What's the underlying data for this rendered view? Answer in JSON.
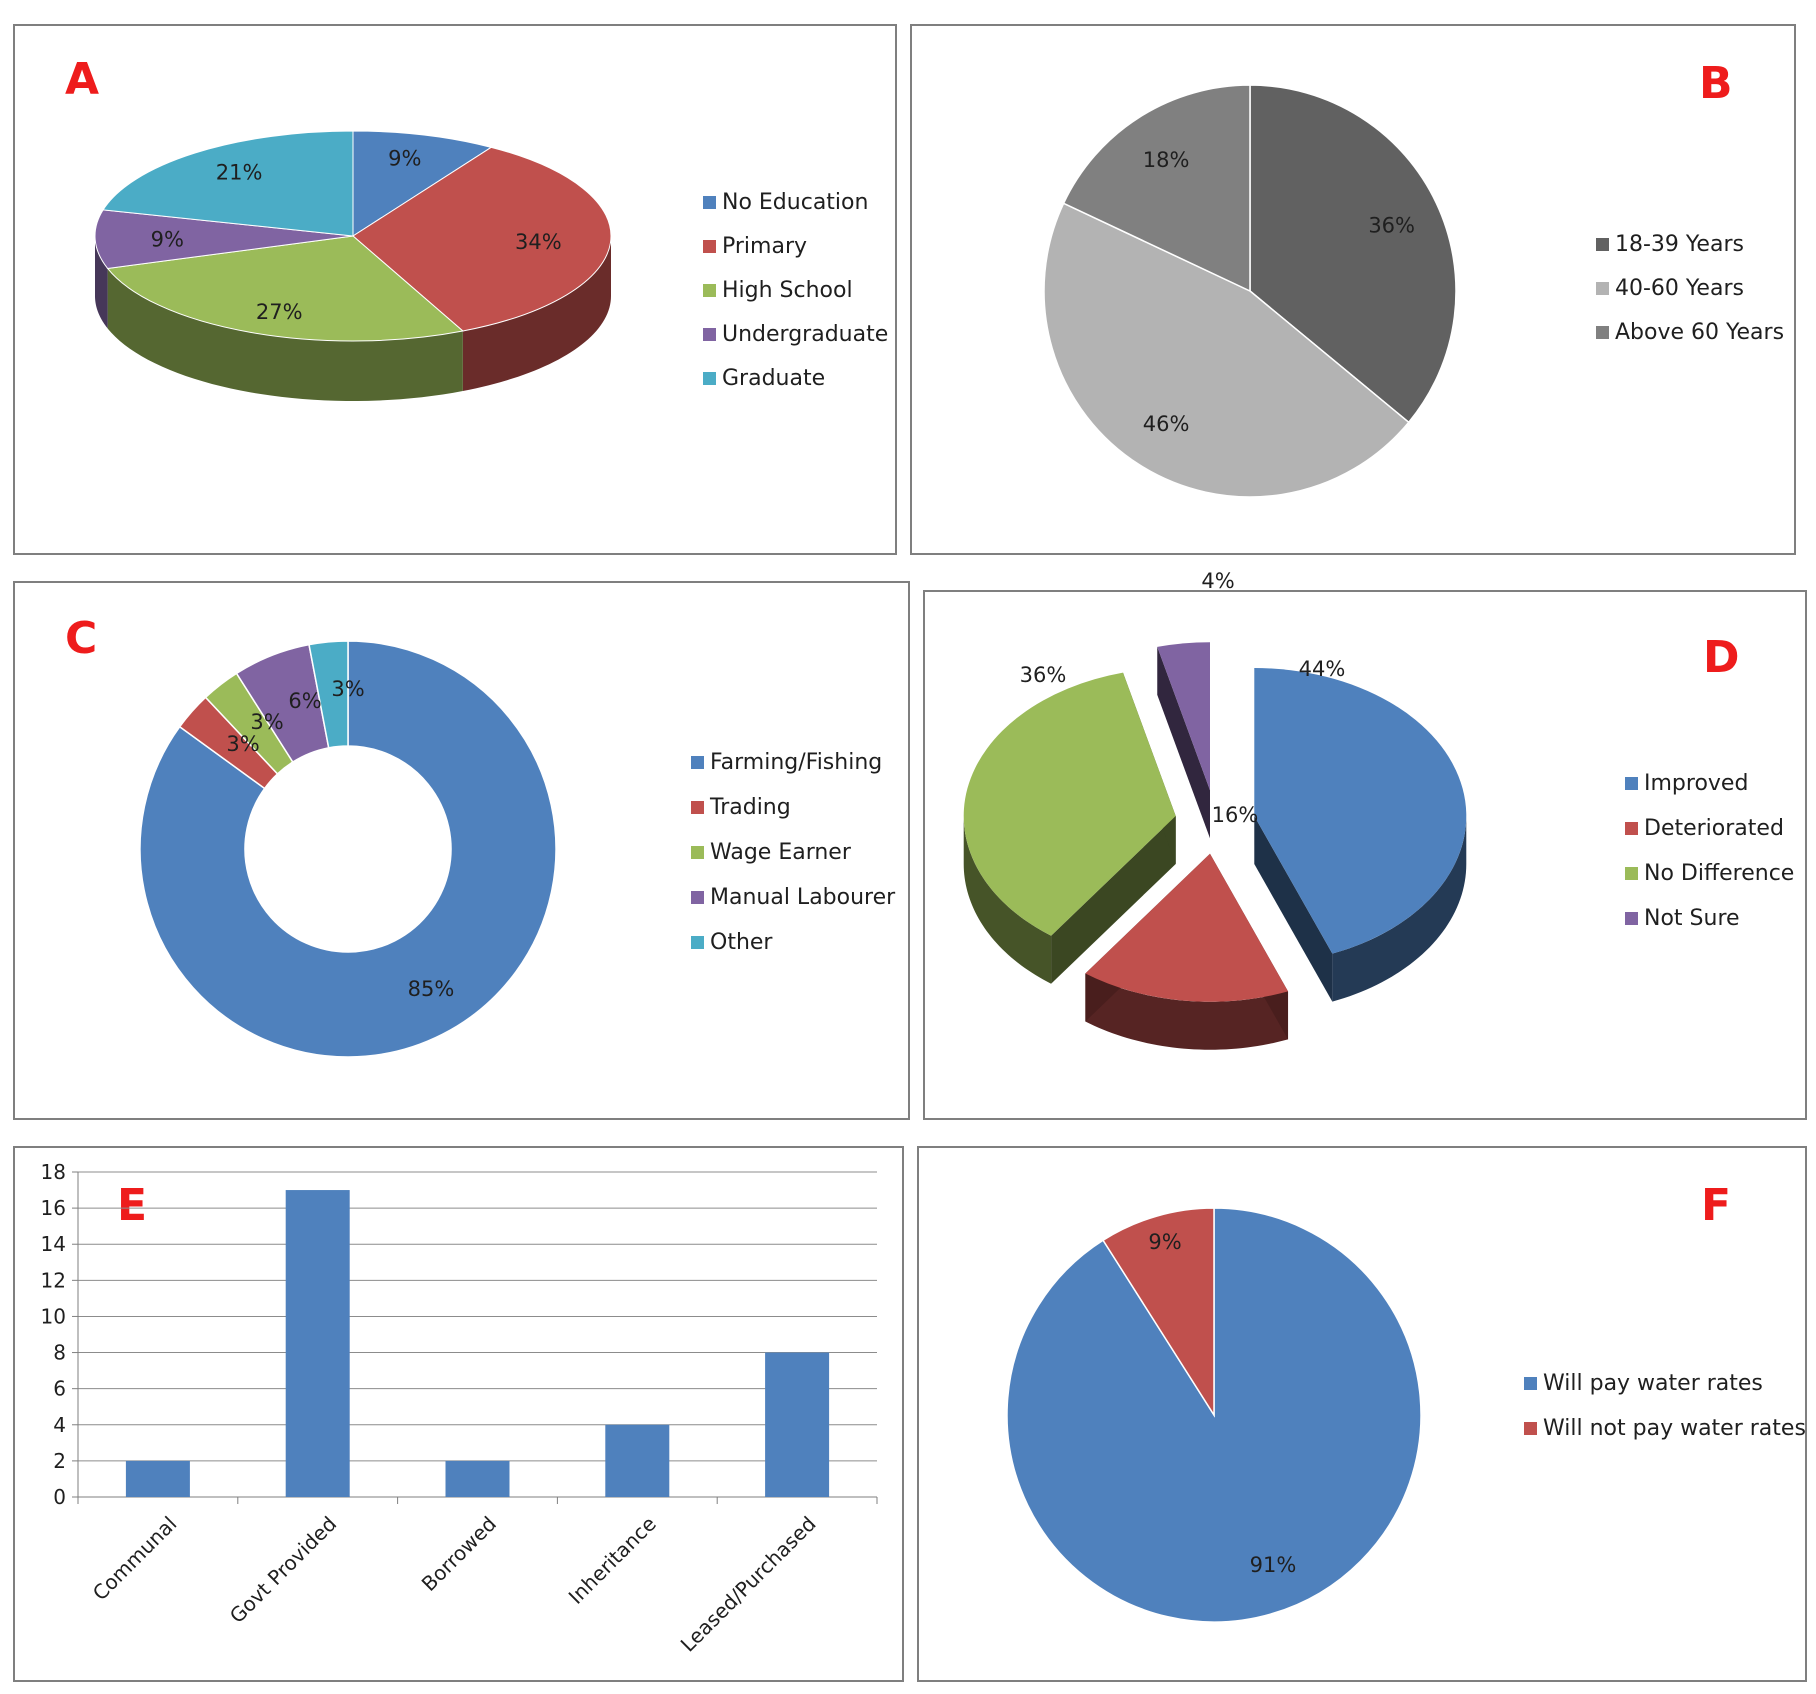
{
  "chart_data": [
    {
      "panel": "A",
      "type": "pie",
      "style": "3d",
      "categories": [
        "No Education",
        "Primary",
        "High School",
        "Undergraduate",
        "Graduate"
      ],
      "values": [
        9,
        34,
        27,
        9,
        21
      ],
      "labels": [
        "9%",
        "34%",
        "27%",
        "9%",
        "21%"
      ],
      "colors": [
        "#4f81bd",
        "#c0504d",
        "#9bbb59",
        "#8064a2",
        "#4bacc6"
      ],
      "legend_position": "right"
    },
    {
      "panel": "B",
      "type": "pie",
      "categories": [
        "18-39 Years",
        "40-60 Years",
        "Above 60 Years"
      ],
      "values": [
        36,
        46,
        18
      ],
      "labels": [
        "36%",
        "46%",
        "18%"
      ],
      "colors": [
        "#616161",
        "#b3b3b3",
        "#808080"
      ],
      "legend_position": "right"
    },
    {
      "panel": "C",
      "type": "pie",
      "style": "doughnut",
      "categories": [
        "Farming/Fishing",
        "Trading",
        "Wage Earner",
        "Manual Labourer",
        "Other"
      ],
      "values": [
        85,
        3,
        3,
        6,
        3
      ],
      "labels": [
        "85%",
        "3%",
        "3%",
        "6%",
        "3%"
      ],
      "colors": [
        "#4f81bd",
        "#c0504d",
        "#9bbb59",
        "#8064a2",
        "#4bacc6"
      ],
      "legend_position": "right"
    },
    {
      "panel": "D",
      "type": "pie",
      "style": "3d-exploded",
      "categories": [
        "Improved",
        "Deteriorated",
        "No Difference",
        "Not Sure"
      ],
      "values": [
        44,
        16,
        36,
        4
      ],
      "labels": [
        "44%",
        "16%",
        "36%",
        "4%"
      ],
      "colors": [
        "#4f81bd",
        "#c0504d",
        "#9bbb59",
        "#8064a2"
      ],
      "legend_position": "right"
    },
    {
      "panel": "E",
      "type": "bar",
      "categories": [
        "Communal",
        "Govt Provided",
        "Borrowed",
        "Inheritance",
        "Leased/Purchased"
      ],
      "values": [
        2,
        17,
        2,
        4,
        8
      ],
      "ylim": [
        0,
        18
      ],
      "yticks": [
        0,
        2,
        4,
        6,
        8,
        10,
        12,
        14,
        16,
        18
      ],
      "grid": true,
      "color": "#4f81bd"
    },
    {
      "panel": "F",
      "type": "pie",
      "categories": [
        "Will pay water rates",
        "Will not pay water rates"
      ],
      "values": [
        91,
        9
      ],
      "labels": [
        "91%",
        "9%"
      ],
      "colors": [
        "#4f81bd",
        "#c0504d"
      ],
      "legend_position": "right"
    }
  ]
}
